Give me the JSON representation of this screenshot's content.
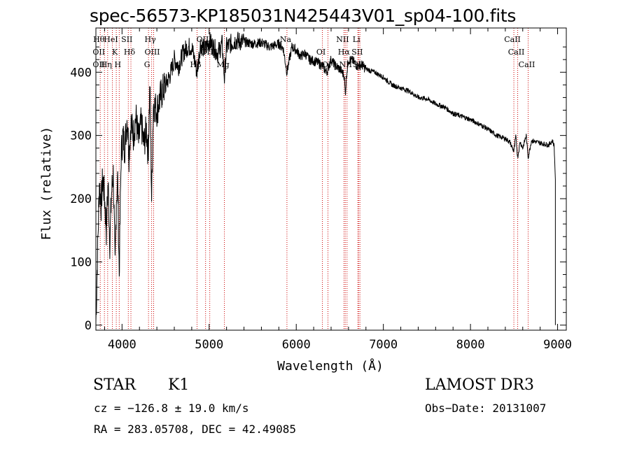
{
  "chart_data": {
    "type": "line",
    "title": "spec-56573-KP185031N425443V01_sp04-100.fits",
    "xlabel": "Wavelength (Å)",
    "ylabel": "Flux (relative)",
    "xlim": [
      3700,
      9100
    ],
    "ylim": [
      -8,
      470
    ],
    "x_ticks": [
      4000,
      5000,
      6000,
      7000,
      8000,
      9000
    ],
    "y_ticks": [
      0,
      100,
      200,
      300,
      400
    ],
    "series": [
      {
        "name": "spectrum",
        "x": [
          3700,
          3720,
          3740,
          3760,
          3780,
          3800,
          3820,
          3840,
          3860,
          3880,
          3900,
          3920,
          3935,
          3950,
          3968,
          3990,
          4010,
          4030,
          4060,
          4080,
          4101,
          4130,
          4160,
          4190,
          4220,
          4250,
          4280,
          4300,
          4320,
          4340,
          4360,
          4400,
          4450,
          4500,
          4550,
          4600,
          4650,
          4700,
          4750,
          4800,
          4861,
          4900,
          4950,
          5000,
          5050,
          5100,
          5150,
          5175,
          5200,
          5250,
          5300,
          5400,
          5500,
          5600,
          5700,
          5800,
          5850,
          5893,
          5950,
          6000,
          6050,
          6100,
          6150,
          6200,
          6250,
          6300,
          6350,
          6400,
          6450,
          6500,
          6550,
          6563,
          6580,
          6600,
          6650,
          6700,
          6750,
          6800,
          6900,
          7000,
          7100,
          7200,
          7300,
          7400,
          7500,
          7600,
          7700,
          7800,
          7900,
          8000,
          8100,
          8200,
          8300,
          8400,
          8450,
          8498,
          8520,
          8542,
          8570,
          8600,
          8640,
          8662,
          8700,
          8800,
          8900,
          8940,
          8960,
          8975
        ],
        "values": [
          5,
          120,
          225,
          190,
          235,
          200,
          150,
          225,
          130,
          210,
          240,
          90,
          200,
          230,
          80,
          270,
          300,
          280,
          330,
          270,
          320,
          300,
          330,
          290,
          320,
          285,
          310,
          270,
          380,
          200,
          350,
          340,
          365,
          380,
          395,
          420,
          410,
          430,
          440,
          440,
          400,
          445,
          435,
          450,
          440,
          430,
          445,
          390,
          440,
          445,
          450,
          448,
          445,
          447,
          440,
          445,
          438,
          400,
          440,
          435,
          425,
          430,
          420,
          418,
          415,
          410,
          400,
          420,
          410,
          405,
          395,
          365,
          400,
          420,
          418,
          410,
          412,
          405,
          400,
          392,
          380,
          375,
          370,
          360,
          358,
          350,
          345,
          335,
          330,
          325,
          318,
          310,
          300,
          295,
          290,
          275,
          298,
          265,
          290,
          280,
          300,
          265,
          292,
          288,
          285,
          292,
          284,
          230
        ]
      }
    ],
    "lines": [
      {
        "wl": 3750,
        "labels": [
          "Hθ",
          "OII",
          "OII"
        ]
      },
      {
        "wl": 3798,
        "labels": []
      },
      {
        "wl": 3835,
        "labels": [
          "Hη"
        ]
      },
      {
        "wl": 3889,
        "labels": [
          "HeI"
        ]
      },
      {
        "wl": 3934,
        "labels": [
          "K"
        ]
      },
      {
        "wl": 3968,
        "labels": [
          "H"
        ]
      },
      {
        "wl": 4072,
        "labels": [
          "SII"
        ]
      },
      {
        "wl": 4102,
        "labels": [
          "Hδ"
        ]
      },
      {
        "wl": 4304,
        "labels": [
          "G"
        ]
      },
      {
        "wl": 4340,
        "labels": [
          "Hγ"
        ]
      },
      {
        "wl": 4363,
        "labels": [
          "OIII"
        ]
      },
      {
        "wl": 4861,
        "labels": [
          "Hβ"
        ]
      },
      {
        "wl": 4959,
        "labels": [
          "OIII"
        ]
      },
      {
        "wl": 5007,
        "labels": [
          "OIII"
        ]
      },
      {
        "wl": 5175,
        "labels": [
          "Mg"
        ]
      },
      {
        "wl": 5893,
        "labels": [
          "Na"
        ]
      },
      {
        "wl": 6300,
        "labels": [
          "OI"
        ]
      },
      {
        "wl": 6364,
        "labels": [
          "OI"
        ]
      },
      {
        "wl": 6548,
        "labels": [
          "NII"
        ]
      },
      {
        "wl": 6563,
        "labels": [
          "Hα"
        ]
      },
      {
        "wl": 6583,
        "labels": [
          "NII"
        ]
      },
      {
        "wl": 6707,
        "labels": [
          "Li"
        ]
      },
      {
        "wl": 6716,
        "labels": [
          "SII"
        ]
      },
      {
        "wl": 6731,
        "labels": [
          "SII"
        ]
      },
      {
        "wl": 8498,
        "labels": [
          "CaII"
        ]
      },
      {
        "wl": 8542,
        "labels": [
          "CaII"
        ]
      },
      {
        "wl": 8662,
        "labels": [
          "CaII"
        ]
      }
    ]
  },
  "info": {
    "class": "STAR",
    "subclass": "K1",
    "survey": "LAMOST DR3",
    "cz": "cz = −126.8 ± 19.0 km/s",
    "obs_date": "Obs−Date: 20131007",
    "radec": "RA = 283.05708, DEC =  42.49085"
  },
  "colors": {
    "line_marker": "#cc0000",
    "spectrum": "#000000"
  }
}
